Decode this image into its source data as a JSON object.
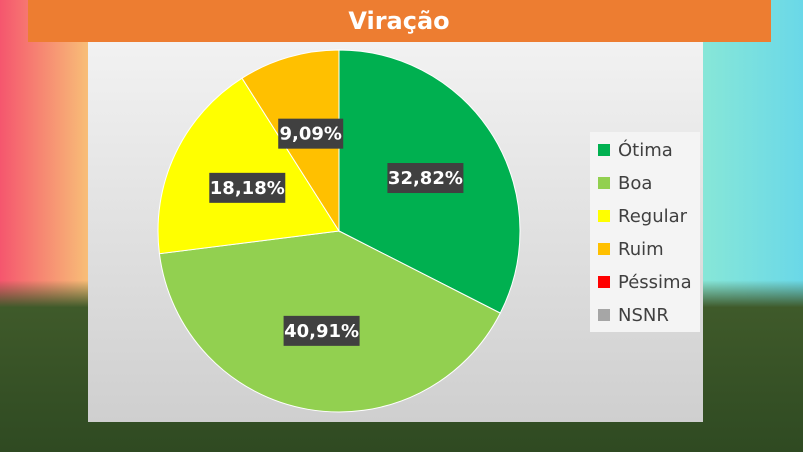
{
  "chart_data": {
    "type": "pie",
    "title": "Viração",
    "categories": [
      "Ótima",
      "Boa",
      "Regular",
      "Ruim",
      "Péssima",
      "NSNR"
    ],
    "values": [
      32.82,
      40.91,
      18.18,
      9.09,
      0,
      0
    ],
    "value_labels": [
      "32,82%",
      "40,91%",
      "18,18%",
      "9,09%",
      null,
      null
    ],
    "colors": [
      "#00b050",
      "#92d050",
      "#ffff00",
      "#ffc000",
      "#ff0000",
      "#a6a6a6"
    ],
    "legend": "right"
  }
}
